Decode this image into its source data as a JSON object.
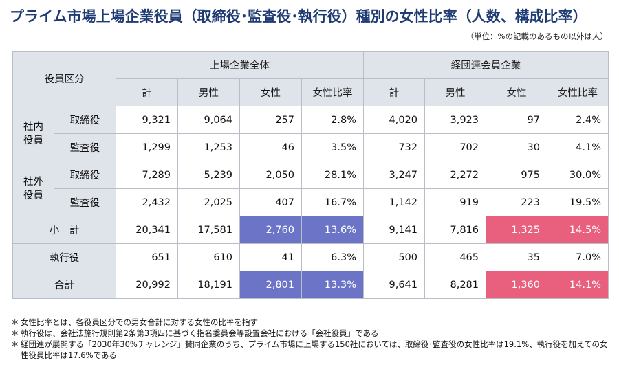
{
  "title": "プライム市場上場企業役員（取締役･監査役･執行役）種別の女性比率（人数、構成比率）",
  "unit_note": "（単位：%の記載のあるもの以外は人）",
  "table": {
    "header": {
      "category_label": "役員区分",
      "group_all": "上場企業全体",
      "group_keidanren": "経団連会員企業",
      "cols": [
        "計",
        "男性",
        "女性",
        "女性比率",
        "計",
        "男性",
        "女性",
        "女性比率"
      ]
    },
    "groups": {
      "inside": "社内\n役員",
      "outside": "社外\n役員"
    },
    "rows": {
      "inside_director": {
        "label": "取締役",
        "values": [
          "9,321",
          "9,064",
          "257",
          "2.8%",
          "4,020",
          "3,923",
          "97",
          "2.4%"
        ]
      },
      "inside_auditor": {
        "label": "監査役",
        "values": [
          "1,299",
          "1,253",
          "46",
          "3.5%",
          "732",
          "702",
          "30",
          "4.1%"
        ]
      },
      "outside_director": {
        "label": "取締役",
        "values": [
          "7,289",
          "5,239",
          "2,050",
          "28.1%",
          "3,247",
          "2,272",
          "975",
          "30.0%"
        ]
      },
      "outside_auditor": {
        "label": "監査役",
        "values": [
          "2,432",
          "2,025",
          "407",
          "16.7%",
          "1,142",
          "919",
          "223",
          "19.5%"
        ]
      },
      "subtotal": {
        "label": "小　計",
        "values": [
          "20,341",
          "17,581",
          "2,760",
          "13.6%",
          "9,141",
          "7,816",
          "1,325",
          "14.5%"
        ]
      },
      "executive": {
        "label": "執行役",
        "values": [
          "651",
          "610",
          "41",
          "6.3%",
          "500",
          "465",
          "35",
          "7.0%"
        ]
      },
      "total": {
        "label": "合計",
        "values": [
          "20,992",
          "18,191",
          "2,801",
          "13.3%",
          "9,641",
          "8,281",
          "1,360",
          "14.1%"
        ]
      }
    },
    "colors": {
      "highlight_all": "#6b74c6",
      "highlight_keidanren": "#e8607e",
      "header_bg": "#dfe3ea"
    }
  },
  "notes": [
    {
      "mark": "＊",
      "text": "女性比率とは、各役員区分での男女合計に対する女性の比率を指す"
    },
    {
      "mark": "＊",
      "text": "執行役は、会社法施行規則第2条第3項四に基づく指名委員会等設置会社における「会社役員」である"
    },
    {
      "mark": "＊",
      "text": "経団連が展開する「2030年30%チャレンジ」賛同企業のうち、プライム市場に上場する150社においては、取締役･監査役の女性比率は19.1%、執行役を加えての女性役員比率は17.6%である"
    }
  ]
}
